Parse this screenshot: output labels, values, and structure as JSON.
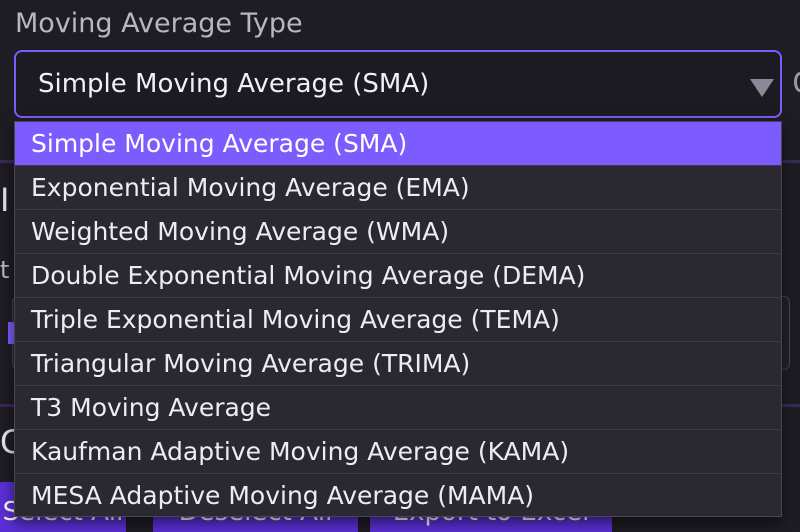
{
  "field": {
    "label": "Moving Average Type",
    "selected_value": "Simple Moving Average (SMA)"
  },
  "options": [
    "Simple Moving Average (SMA)",
    "Exponential Moving Average (EMA)",
    "Weighted Moving Average (WMA)",
    "Double Exponential Moving Average (DEMA)",
    "Triple Exponential Moving Average (TEMA)",
    "Triangular Moving Average (TRIMA)",
    "T3 Moving Average",
    "Kaufman Adaptive Moving Average (KAMA)",
    "MESA Adaptive Moving Average (MAMA)"
  ],
  "selected_index": 0,
  "background": {
    "fragments": [
      "I",
      "t",
      "C"
    ],
    "buttons": [
      "Select All",
      "Deselect All",
      "Export to Excel"
    ]
  },
  "colors": {
    "accent": "#7c5cff",
    "button": "#5b2fd6",
    "background": "#1f1d24",
    "dropdown": "#2a2830"
  }
}
